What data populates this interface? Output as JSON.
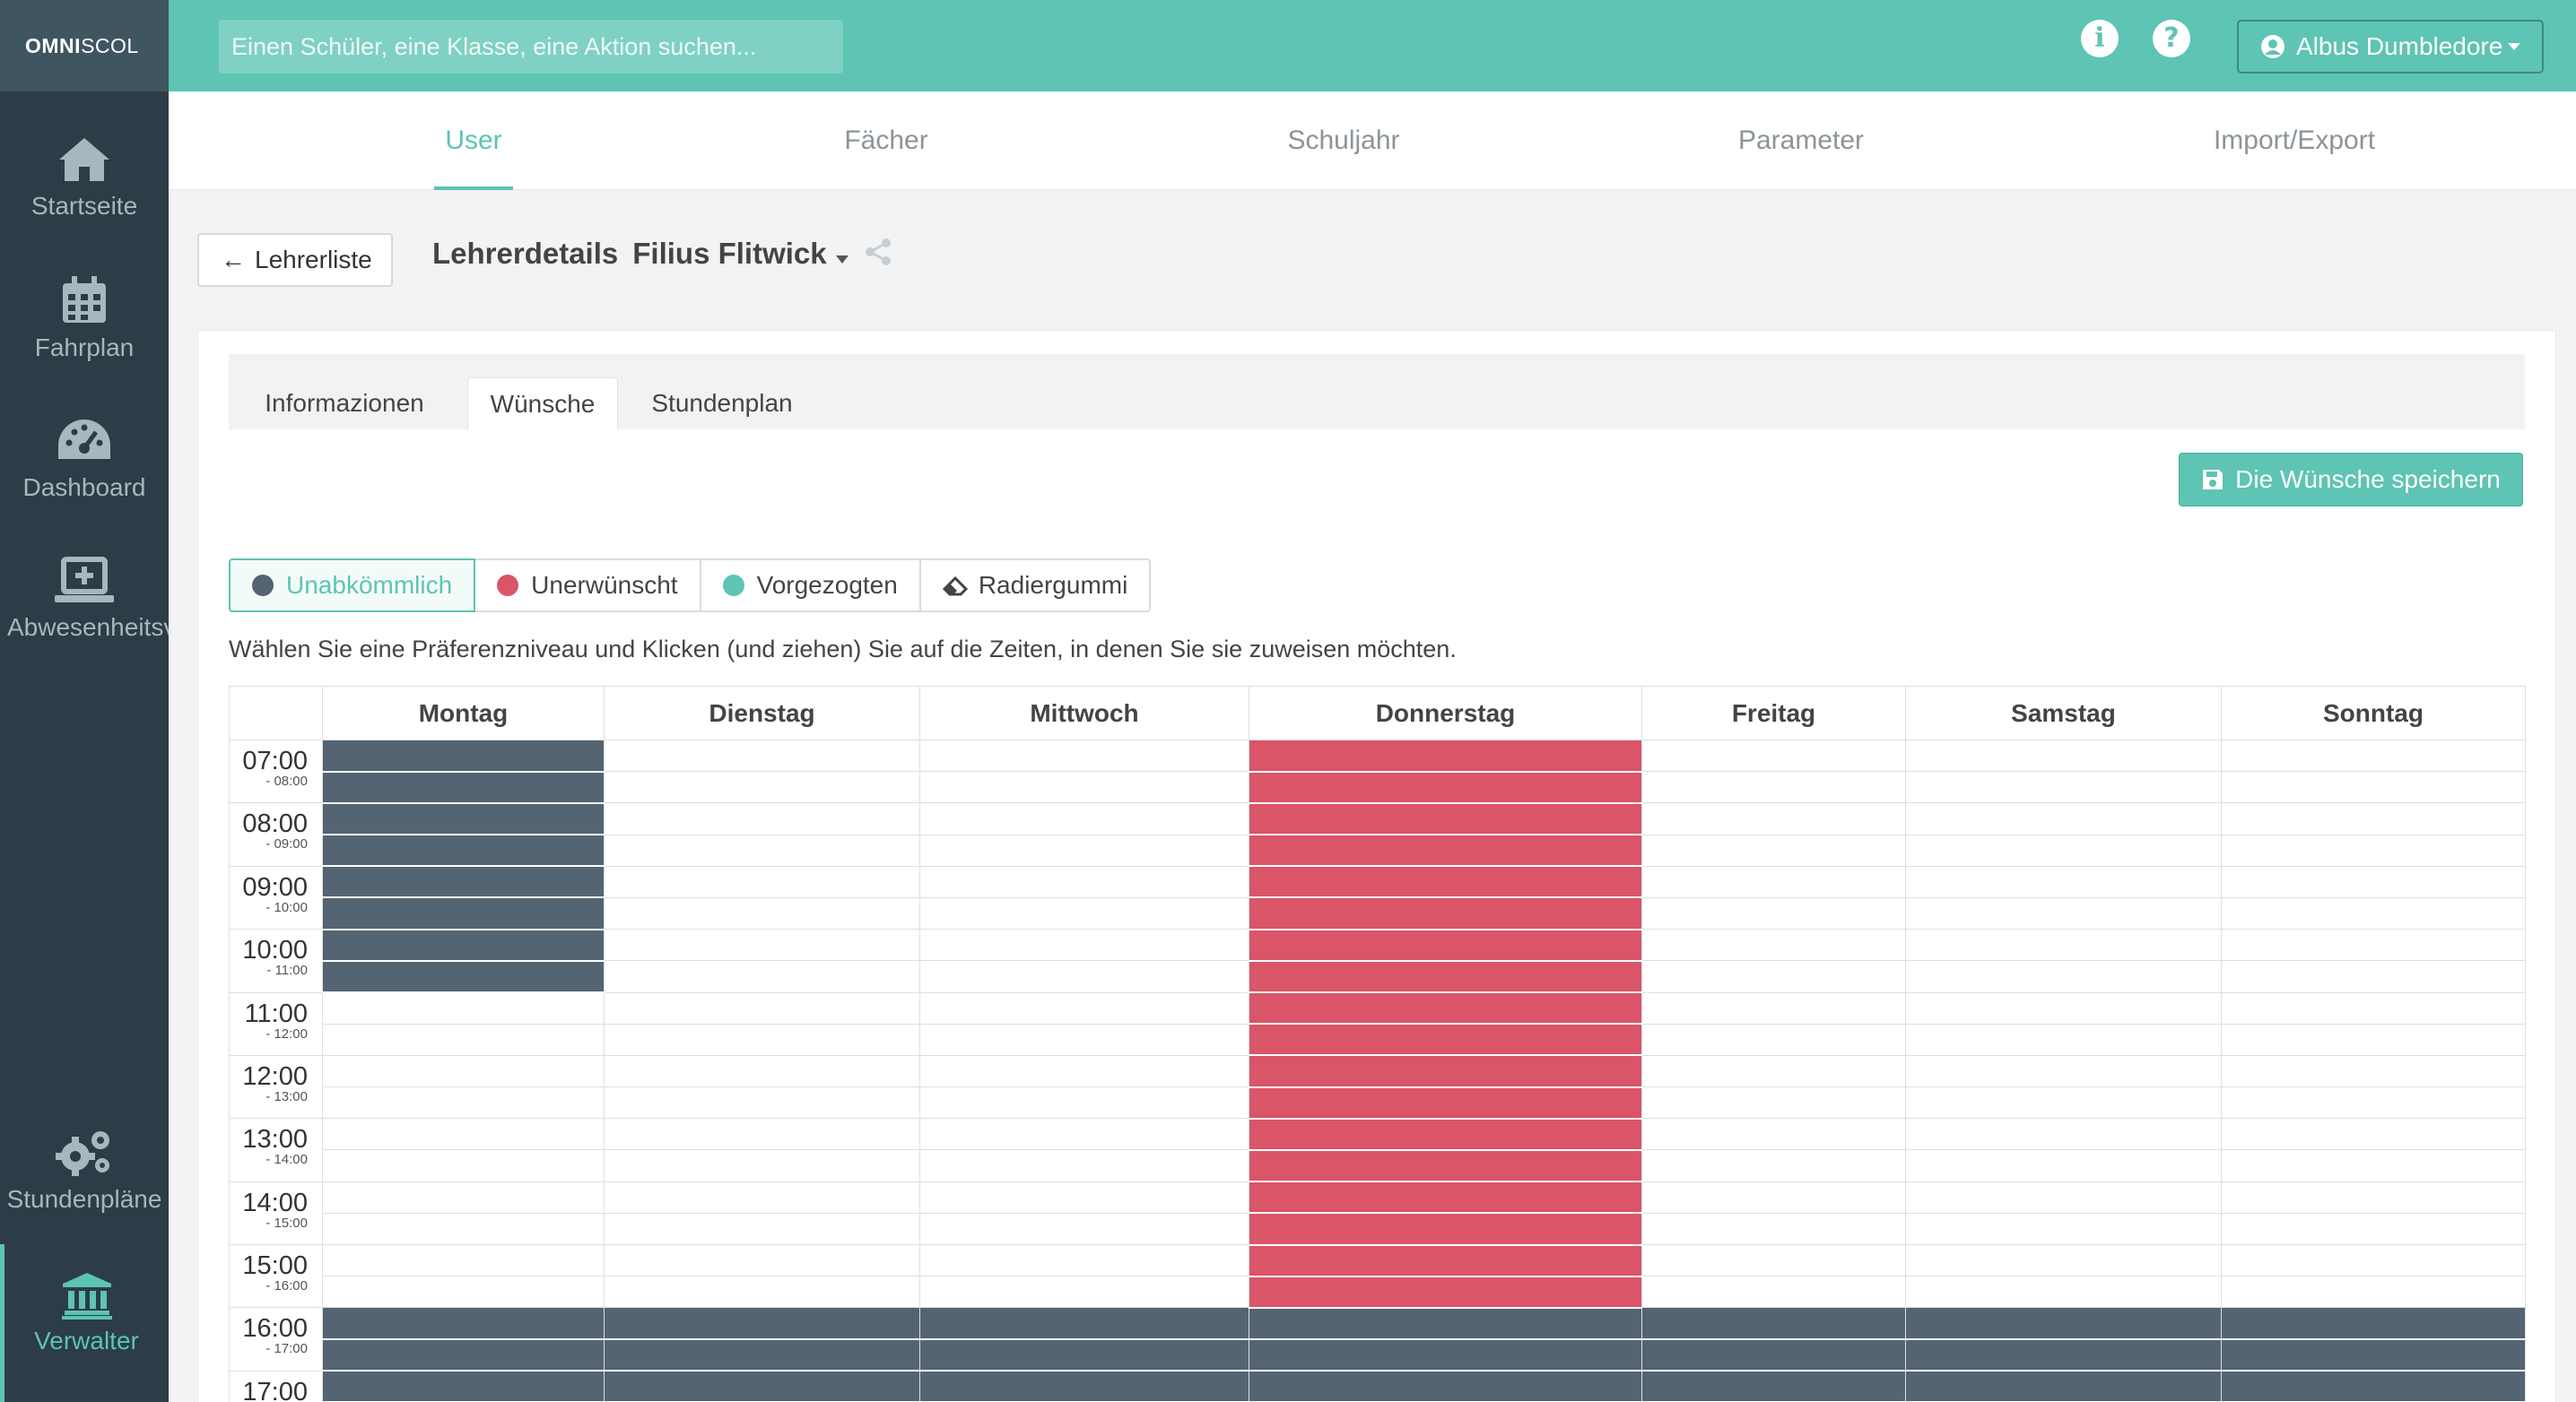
{
  "app": {
    "brand_bold": "OMNI",
    "brand_rest": "SCOL"
  },
  "sidebar": {
    "items": [
      {
        "label": "Startseite",
        "icon": "home-icon"
      },
      {
        "label": "Fahrplan",
        "icon": "calendar-icon"
      },
      {
        "label": "Dashboard",
        "icon": "speedometer-icon"
      },
      {
        "label": "Abwesenheitsverwaltung",
        "icon": "laptop-plus-icon"
      },
      {
        "label": "Stundenpläne",
        "icon": "cogs-icon"
      },
      {
        "label": "Verwalter",
        "icon": "institution-icon",
        "active": true
      }
    ]
  },
  "topbar": {
    "search_placeholder": "Einen Schüler, eine Klasse, eine Aktion suchen...",
    "info_icon": "i",
    "help_icon": "?",
    "user_name": "Albus Dumbledore"
  },
  "mainnav": {
    "tabs": [
      {
        "label": "User",
        "active": true
      },
      {
        "label": "Fächer"
      },
      {
        "label": "Schuljahr"
      },
      {
        "label": "Parameter"
      },
      {
        "label": "Import/Export"
      }
    ]
  },
  "header": {
    "back_label": "Lehrerliste",
    "title": "Lehrerdetails",
    "teacher": "Filius Flitwick"
  },
  "subtabs": [
    {
      "label": "Informazionen"
    },
    {
      "label": "Wünsche",
      "active": true
    },
    {
      "label": "Stundenplan"
    }
  ],
  "save_label": "Die Wünsche speichern",
  "levels": [
    {
      "label": "Unabkömmlich",
      "color": "#556472",
      "active": true
    },
    {
      "label": "Unerwünscht",
      "color": "#d95567"
    },
    {
      "label": "Vorgezogten",
      "color": "#5ec4b3"
    },
    {
      "label": "Radiergummi",
      "color": "eraser-icon"
    }
  ],
  "instruction": "Wählen Sie eine Präferenzniveau und Klicken (und ziehen) Sie auf die Zeiten, in denen Sie sie zuweisen möchten.",
  "schedule": {
    "days": [
      "Montag",
      "Dienstag",
      "Mittwoch",
      "Donnerstag",
      "Freitag",
      "Samstag",
      "Sonntag"
    ],
    "hours": [
      {
        "start": "07:00",
        "end": "- 08:00"
      },
      {
        "start": "08:00",
        "end": "- 09:00"
      },
      {
        "start": "09:00",
        "end": "- 10:00"
      },
      {
        "start": "10:00",
        "end": "- 11:00"
      },
      {
        "start": "11:00",
        "end": "- 12:00"
      },
      {
        "start": "12:00",
        "end": "- 13:00"
      },
      {
        "start": "13:00",
        "end": "- 14:00"
      },
      {
        "start": "14:00",
        "end": "- 15:00"
      },
      {
        "start": "15:00",
        "end": "- 16:00"
      },
      {
        "start": "16:00",
        "end": "- 17:00"
      },
      {
        "start": "17:00",
        "end": ""
      }
    ],
    "marks": {
      "Montag": {
        "u": [
          "07:00",
          "08:00",
          "09:00",
          "10:00",
          "16:00",
          "17:00"
        ]
      },
      "Dienstag": {
        "u": [
          "16:00",
          "17:00"
        ]
      },
      "Mittwoch": {
        "u": [
          "16:00",
          "17:00"
        ]
      },
      "Donnerstag": {
        "r": [
          "07:00",
          "08:00",
          "09:00",
          "10:00",
          "11:00",
          "12:00",
          "13:00",
          "14:00",
          "15:00"
        ],
        "u": [
          "16:00",
          "17:00"
        ]
      },
      "Freitag": {
        "u": [
          "16:00",
          "17:00"
        ]
      },
      "Samstag": {
        "u": [
          "16:00",
          "17:00"
        ]
      },
      "Sonntag": {
        "u": [
          "16:00",
          "17:00"
        ]
      }
    }
  }
}
